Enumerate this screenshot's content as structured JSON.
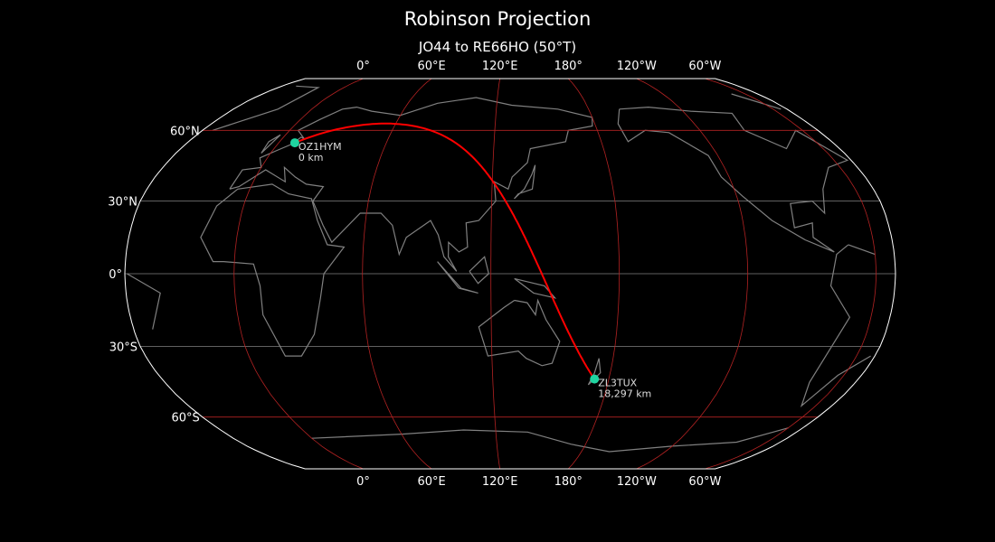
{
  "title": "Robinson Projection",
  "subtitle": "JO44 to RE66HO (50°T)",
  "map": {
    "projection": "Robinson",
    "central_longitude": 129,
    "lon_ticks": [
      {
        "lon": 0,
        "label": "0°"
      },
      {
        "lon": 60,
        "label": "60°E"
      },
      {
        "lon": 120,
        "label": "120°E"
      },
      {
        "lon": 180,
        "label": "180°"
      },
      {
        "lon": -120,
        "label": "120°W"
      },
      {
        "lon": -60,
        "label": "60°W"
      }
    ],
    "lat_ticks": [
      {
        "lat": 60,
        "label": "60°N"
      },
      {
        "lat": 30,
        "label": "30°N"
      },
      {
        "lat": 0,
        "label": "0°"
      },
      {
        "lat": -30,
        "label": "30°S"
      },
      {
        "lat": -60,
        "label": "60°S"
      }
    ],
    "colors": {
      "background": "#000000",
      "coastline": "#808080",
      "graticule_major": "#b22222",
      "graticule_minor": "#808080",
      "path": "#ff0000",
      "station": "#1fd4a0",
      "outline": "#ffffff"
    }
  },
  "stations": [
    {
      "call": "OZ1HYM",
      "distance": "0 km",
      "lat": 54.5,
      "lon": 9
    },
    {
      "call": "ZL3TUX",
      "distance": "18,297 km",
      "lat": -43.6,
      "lon": 172.6
    }
  ]
}
